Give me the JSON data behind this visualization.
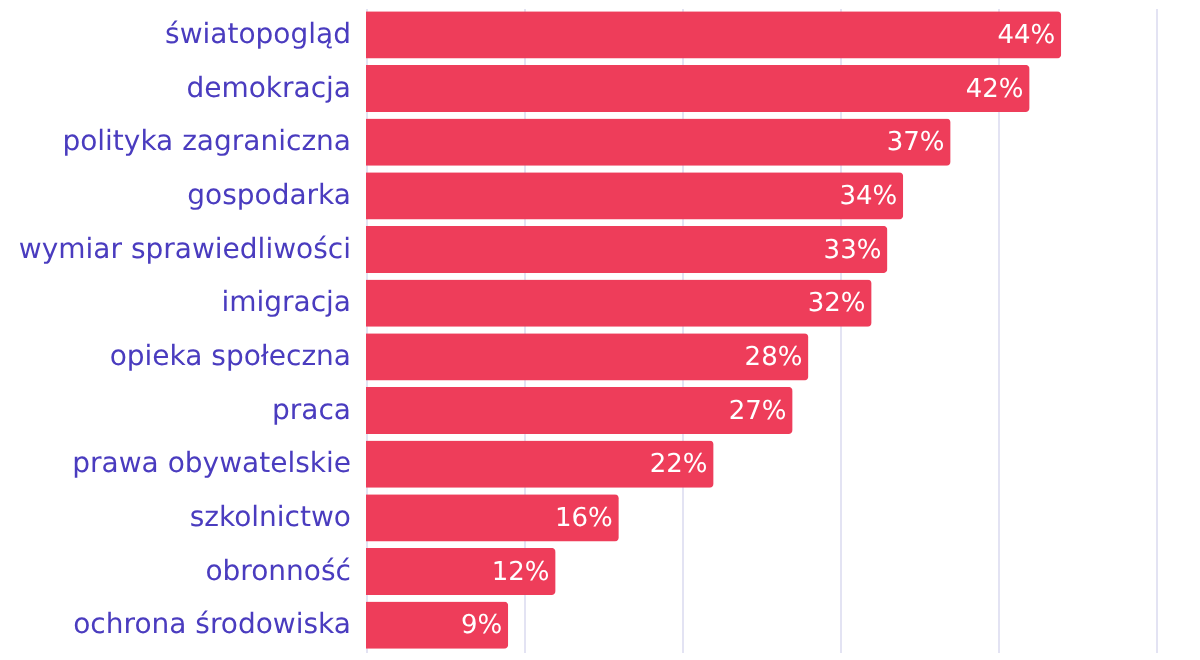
{
  "chart_data": {
    "type": "bar",
    "orientation": "horizontal",
    "categories": [
      "światopogląd",
      "demokracja",
      "polityka zagraniczna",
      "gospodarka",
      "wymiar sprawiedliwości",
      "imigracja",
      "opieka społeczna",
      "praca",
      "prawa obywatelskie",
      "szkolnictwo",
      "obronność",
      "ochrona środowiska"
    ],
    "values": [
      44,
      42,
      37,
      34,
      33,
      32,
      28,
      27,
      22,
      16,
      12,
      9
    ],
    "value_labels": [
      "44%",
      "42%",
      "37%",
      "34%",
      "33%",
      "32%",
      "28%",
      "27%",
      "22%",
      "16%",
      "12%",
      "9%"
    ],
    "color": "#ee3d5a",
    "xlim": [
      0,
      50
    ],
    "xticks": [
      {
        "value": 0,
        "label": null
      },
      {
        "value": 10,
        "label": null
      },
      {
        "value": 20,
        "label": null
      },
      {
        "value": 30,
        "label": null
      },
      {
        "value": 40,
        "label": null
      },
      {
        "value": 50,
        "label": null
      }
    ],
    "grid": "x",
    "tick_labels": "y"
  }
}
